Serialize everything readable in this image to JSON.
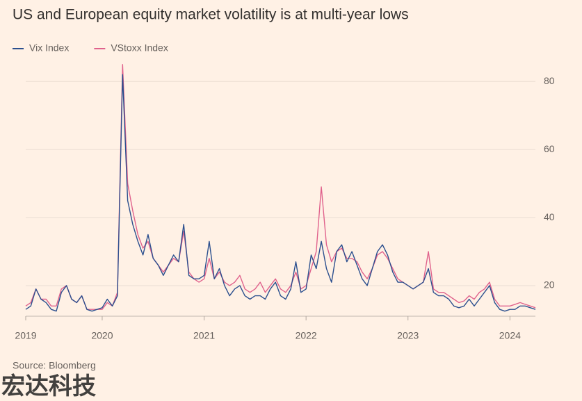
{
  "chart_data": {
    "type": "line",
    "title": "US and European equity market volatility is at multi-year lows",
    "source": "Source: Bloomberg",
    "watermark": "宏达科技",
    "x": [
      2019.25,
      2019.3,
      2019.35,
      2019.4,
      2019.45,
      2019.5,
      2019.55,
      2019.6,
      2019.65,
      2019.7,
      2019.75,
      2019.8,
      2019.85,
      2019.9,
      2019.95,
      2020.0,
      2020.05,
      2020.1,
      2020.15,
      2020.2,
      2020.25,
      2020.3,
      2020.35,
      2020.4,
      2020.45,
      2020.5,
      2020.55,
      2020.6,
      2020.65,
      2020.7,
      2020.75,
      2020.8,
      2020.85,
      2020.9,
      2020.95,
      2021.0,
      2021.05,
      2021.1,
      2021.15,
      2021.2,
      2021.25,
      2021.3,
      2021.35,
      2021.4,
      2021.45,
      2021.5,
      2021.55,
      2021.6,
      2021.65,
      2021.7,
      2021.75,
      2021.8,
      2021.85,
      2021.9,
      2021.95,
      2022.0,
      2022.05,
      2022.1,
      2022.15,
      2022.2,
      2022.25,
      2022.3,
      2022.35,
      2022.4,
      2022.45,
      2022.5,
      2022.55,
      2022.6,
      2022.65,
      2022.7,
      2022.75,
      2022.8,
      2022.85,
      2022.9,
      2022.95,
      2023.0,
      2023.05,
      2023.1,
      2023.15,
      2023.2,
      2023.25,
      2023.3,
      2023.35,
      2023.4,
      2023.45,
      2023.5,
      2023.55,
      2023.6,
      2023.65,
      2023.7,
      2023.75,
      2023.8,
      2023.85,
      2023.9,
      2023.95,
      2024.0,
      2024.05,
      2024.1,
      2024.15,
      2024.2,
      2024.25
    ],
    "series": [
      {
        "name": "VStoxx Index",
        "color": "#e0628c",
        "values": [
          14,
          15,
          19,
          16,
          16,
          14,
          14,
          19,
          20,
          16,
          15,
          17,
          13,
          13,
          13,
          13,
          15,
          14,
          18,
          85,
          50,
          42,
          35,
          31,
          33,
          28,
          26,
          24,
          26,
          28,
          27,
          36,
          24,
          22,
          21,
          22,
          28,
          22,
          24,
          21,
          20,
          21,
          23,
          19,
          18,
          19,
          21,
          18,
          20,
          22,
          19,
          18,
          20,
          24,
          19,
          20,
          25,
          30,
          49,
          32,
          27,
          30,
          31,
          28,
          28,
          27,
          24,
          22,
          25,
          29,
          30,
          28,
          25,
          22,
          21,
          20,
          19,
          20,
          21,
          30,
          19,
          18,
          18,
          17,
          16,
          15,
          15.5,
          17,
          16,
          18,
          19,
          21,
          16,
          14,
          14,
          14,
          14.5,
          15,
          14.5,
          14,
          13.5
        ]
      },
      {
        "name": "Vix Index",
        "color": "#2b4f8e",
        "values": [
          13,
          14,
          19,
          16,
          15,
          13,
          12.5,
          18,
          20,
          16,
          15,
          17,
          13,
          12.5,
          13,
          13.5,
          16,
          14,
          17,
          82,
          45,
          38,
          33,
          29,
          35,
          28,
          26,
          23,
          26,
          29,
          27,
          38,
          23,
          22,
          22,
          23,
          33,
          22,
          25,
          20,
          17,
          19,
          20,
          17,
          16,
          17,
          17,
          16,
          19,
          21,
          17,
          16,
          19,
          27,
          18,
          19,
          29,
          25,
          33,
          25,
          21,
          30,
          32,
          27,
          30,
          26,
          22,
          20,
          25,
          30,
          32,
          29,
          24,
          21,
          21,
          20,
          19,
          20,
          21,
          25,
          18,
          17,
          17,
          16,
          14,
          13.5,
          14,
          16,
          14,
          16,
          18,
          20,
          15,
          13,
          12.5,
          13,
          13,
          14,
          14,
          13.5,
          13
        ]
      }
    ],
    "legend_order": [
      1,
      0
    ],
    "xlim": [
      2019.25,
      2024.25
    ],
    "xticks": [
      {
        "value": 2019.25,
        "label": "2019"
      },
      2020,
      2021,
      2022,
      2023,
      2024
    ],
    "ylim": [
      11,
      87
    ],
    "yticks": [
      20,
      40,
      60,
      80
    ],
    "grid": true
  }
}
